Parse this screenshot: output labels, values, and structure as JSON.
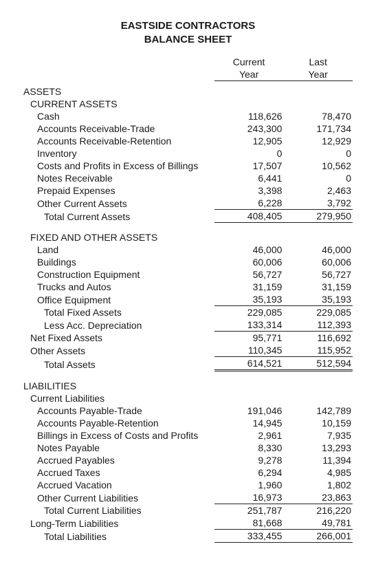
{
  "title": {
    "line1": "EASTSIDE CONTRACTORS",
    "line2": "BALANCE SHEET"
  },
  "columns": {
    "current_l1": "Current",
    "current_l2": "Year",
    "last_l1": "Last",
    "last_l2": "Year"
  },
  "sections": {
    "assets": "ASSETS",
    "current_assets": "CURRENT ASSETS",
    "fixed_other": "FIXED AND OTHER ASSETS",
    "liabilities": "LIABILITIES",
    "current_liab": "Current Liabilities"
  },
  "assets": {
    "cash": {
      "label": "Cash",
      "cur": "118,626",
      "last": "78,470"
    },
    "ar_trade": {
      "label": "Accounts Receivable-Trade",
      "cur": "243,300",
      "last": "171,734"
    },
    "ar_retention": {
      "label": "Accounts Receivable-Retention",
      "cur": "12,905",
      "last": "12,929"
    },
    "inventory": {
      "label": "Inventory",
      "cur": "0",
      "last": "0"
    },
    "costs_excess": {
      "label": "Costs and Profits in Excess of Billings",
      "cur": "17,507",
      "last": "10,562"
    },
    "notes_rec": {
      "label": "Notes Receivable",
      "cur": "6,441",
      "last": "0"
    },
    "prepaid": {
      "label": "Prepaid Expenses",
      "cur": "3,398",
      "last": "2,463"
    },
    "other_ca": {
      "label": "Other Current Assets",
      "cur": "6,228",
      "last": "3,792"
    },
    "total_ca": {
      "label": "Total Current Assets",
      "cur": "408,405",
      "last": "279,950"
    },
    "land": {
      "label": "Land",
      "cur": "46,000",
      "last": "46,000"
    },
    "buildings": {
      "label": "Buildings",
      "cur": "60,006",
      "last": "60,006"
    },
    "construction_eq": {
      "label": "Construction Equipment",
      "cur": "56,727",
      "last": "56,727"
    },
    "trucks": {
      "label": "Trucks and Autos",
      "cur": "31,159",
      "last": "31,159"
    },
    "office_eq": {
      "label": "Office Equipment",
      "cur": "35,193",
      "last": "35,193"
    },
    "total_fixed": {
      "label": "Total Fixed Assets",
      "cur": "229,085",
      "last": "229,085"
    },
    "less_dep": {
      "label": "Less Acc. Depreciation",
      "cur": "133,314",
      "last": "112,393"
    },
    "net_fixed": {
      "label": "Net Fixed Assets",
      "cur": "95,771",
      "last": "116,692"
    },
    "other_assets": {
      "label": "Other Assets",
      "cur": "110,345",
      "last": "115,952"
    },
    "total_assets": {
      "label": "Total Assets",
      "cur": "614,521",
      "last": "512,594"
    }
  },
  "liab": {
    "ap_trade": {
      "label": "Accounts Payable-Trade",
      "cur": "191,046",
      "last": "142,789"
    },
    "ap_retention": {
      "label": "Accounts Payable-Retention",
      "cur": "14,945",
      "last": "10,159"
    },
    "billings_excess": {
      "label": "Billings in Excess of Costs and Profits",
      "cur": "2,961",
      "last": "7,935"
    },
    "notes_pay": {
      "label": "Notes Payable",
      "cur": "8,330",
      "last": "13,293"
    },
    "accrued_pay": {
      "label": "Accrued Payables",
      "cur": "9,278",
      "last": "11,394"
    },
    "accrued_tax": {
      "label": "Accrued Taxes",
      "cur": "6,294",
      "last": "4,985"
    },
    "accrued_vac": {
      "label": "Accrued Vacation",
      "cur": "1,960",
      "last": "1,802"
    },
    "other_cl": {
      "label": "Other Current Liabilities",
      "cur": "16,973",
      "last": "23,863"
    },
    "total_cl": {
      "label": "Total Current Liabilities",
      "cur": "251,787",
      "last": "216,220"
    },
    "lt_liab": {
      "label": "Long-Term Liabilities",
      "cur": "81,668",
      "last": "49,781"
    },
    "total_liab": {
      "label": "Total Liabilities",
      "cur": "333,455",
      "last": "266,001"
    }
  },
  "style": {
    "text_color": "#1a1a1a",
    "rule_color": "#222222",
    "background": "#ffffff",
    "font_size_pt": 10
  }
}
